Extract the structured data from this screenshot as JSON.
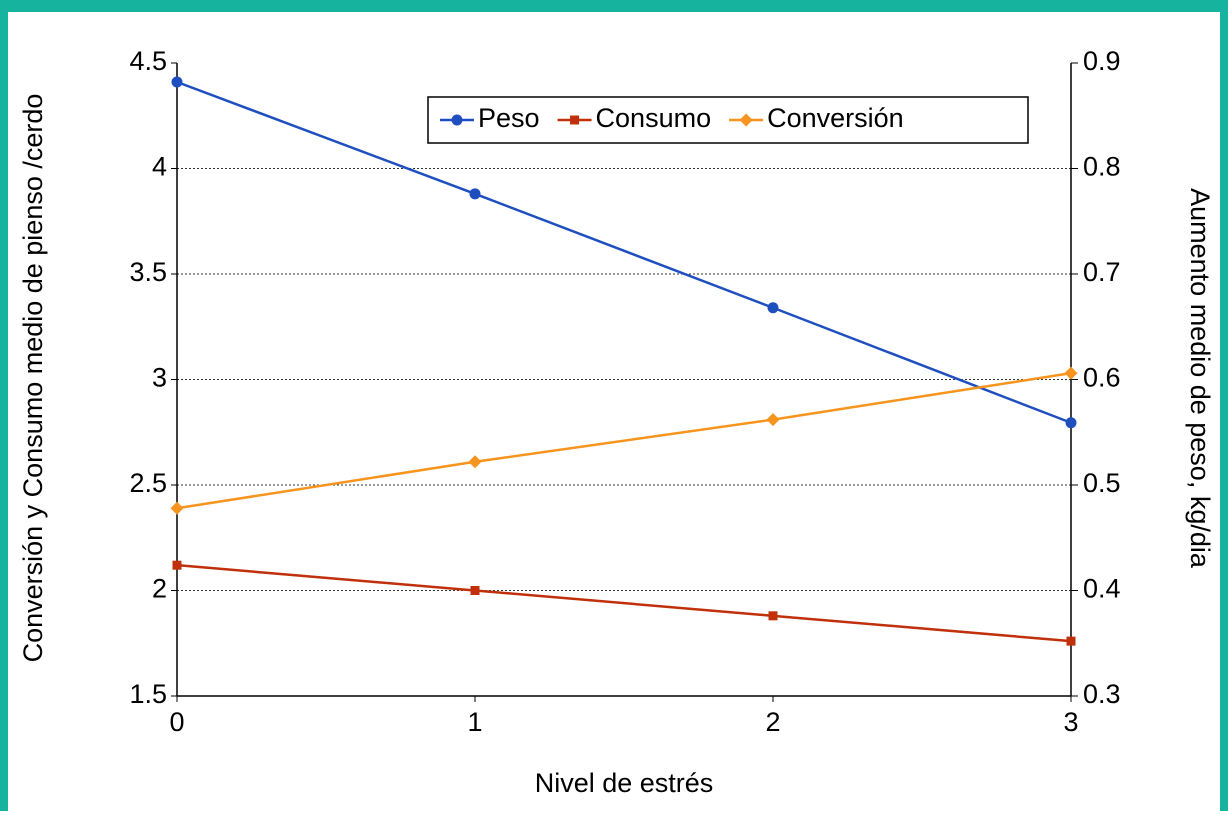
{
  "chart_data": {
    "type": "line",
    "x_label": "Nivel de estrés",
    "y_label": "Conversión y Consumo medio de pienso /cerdo",
    "y2_label": "Aumento medio de peso, kg/dia",
    "x": [
      0,
      1,
      2,
      3
    ],
    "xlim": [
      0,
      3
    ],
    "xticks": [
      0,
      1,
      2,
      3
    ],
    "ylim": [
      1.5,
      4.5
    ],
    "yticks": [
      1.5,
      2,
      2.5,
      3,
      3.5,
      4,
      4.5
    ],
    "y2lim": [
      0.3,
      0.9
    ],
    "y2ticks": [
      0.3,
      0.4,
      0.5,
      0.6,
      0.7,
      0.8,
      0.9
    ],
    "grid": true,
    "legend": "top",
    "series": [
      {
        "name": "Peso",
        "color": "#1f4fbf",
        "axis": "y2",
        "marker": "circle",
        "values": [
          0.882,
          0.776,
          0.668,
          0.559
        ]
      },
      {
        "name": "Consumo",
        "color": "#c0300a",
        "marker": "square",
        "values": [
          2.12,
          2.0,
          1.88,
          1.76
        ]
      },
      {
        "name": "Conversión",
        "color": "#f7941d",
        "marker": "diamond",
        "values": [
          2.39,
          2.61,
          2.81,
          3.03
        ]
      }
    ]
  }
}
